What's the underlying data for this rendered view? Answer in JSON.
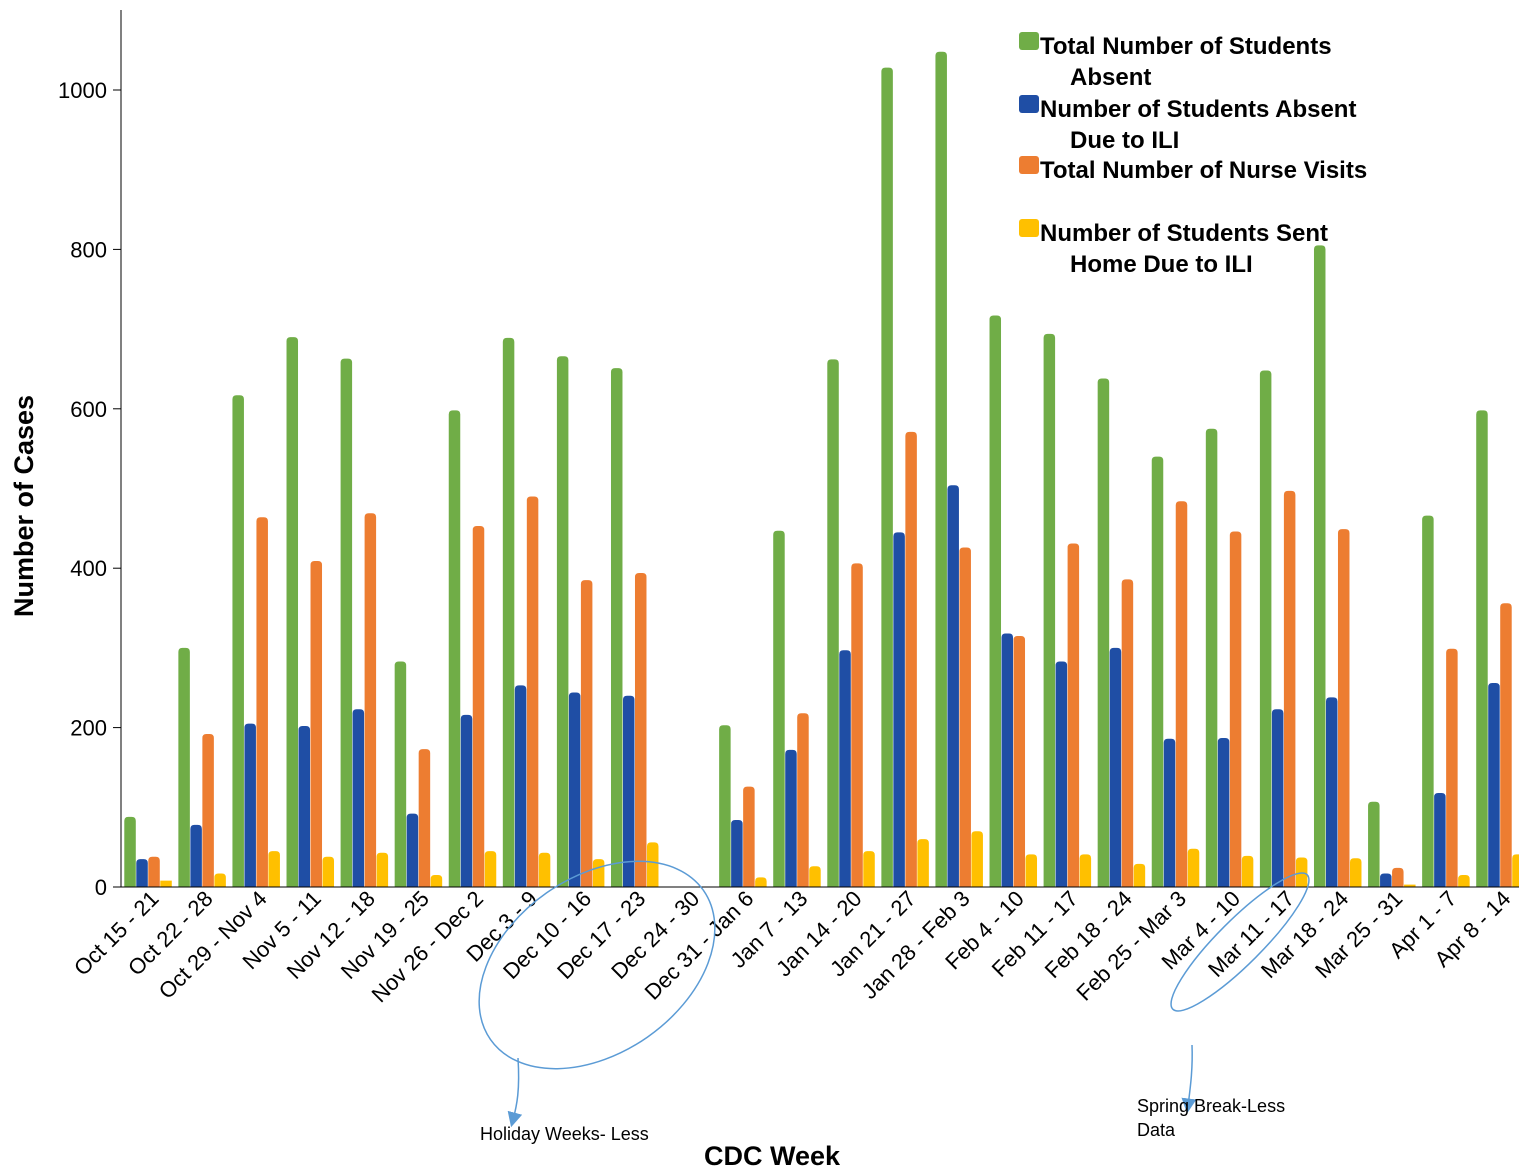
{
  "chart_data": {
    "type": "bar",
    "xlabel": "CDC Week",
    "ylabel": "Number of Cases",
    "ylim": [
      0,
      1100
    ],
    "yticks": [
      0,
      200,
      400,
      600,
      800,
      1000
    ],
    "grid": false,
    "legend_position": "top-right",
    "categories": [
      "Oct 15 - 21",
      "Oct 22 - 28",
      "Oct 29 - Nov 4",
      "Nov 5 - 11",
      "Nov 12 - 18",
      "Nov 19 - 25",
      "Nov 26 - Dec 2",
      "Dec 3 - 9",
      "Dec 10 - 16",
      "Dec 17 - 23",
      "Dec 24 - 30",
      "Dec 31 - Jan 6",
      "Jan 7 - 13",
      "Jan 14 - 20",
      "Jan 21 - 27",
      "Jan 28 - Feb 3",
      "Feb 4 - 10",
      "Feb 11 - 17",
      "Feb 18 - 24",
      "Feb 25 - Mar 3",
      "Mar 4 - 10",
      "Mar 11 - 17",
      "Mar 18 - 24",
      "Mar 25 - 31",
      "Apr 1 - 7",
      "Apr 8 - 14"
    ],
    "series": [
      {
        "name": "Total Number of Students Absent",
        "color": "#70ad47",
        "values": [
          88,
          300,
          617,
          690,
          663,
          283,
          598,
          689,
          666,
          651,
          0,
          203,
          447,
          662,
          1028,
          1048,
          717,
          694,
          638,
          540,
          575,
          648,
          805,
          107,
          466,
          598
        ]
      },
      {
        "name": "Number of Students Absent Due to ILI",
        "color": "#1f4ea5",
        "values": [
          35,
          78,
          205,
          202,
          223,
          92,
          216,
          253,
          244,
          240,
          0,
          84,
          172,
          297,
          445,
          504,
          318,
          283,
          300,
          186,
          187,
          223,
          238,
          17,
          118,
          256
        ]
      },
      {
        "name": "Total Number of Nurse Visits",
        "color": "#ed7d31",
        "values": [
          38,
          192,
          464,
          409,
          469,
          173,
          453,
          490,
          385,
          394,
          0,
          126,
          218,
          406,
          571,
          426,
          315,
          431,
          386,
          484,
          446,
          497,
          449,
          24,
          299,
          356
        ]
      },
      {
        "name": "Number of Students Sent Home Due to ILI",
        "color": "#ffc000",
        "values": [
          8,
          17,
          45,
          38,
          43,
          15,
          45,
          43,
          35,
          56,
          0,
          12,
          26,
          45,
          60,
          70,
          41,
          41,
          29,
          48,
          39,
          37,
          36,
          3,
          15,
          41
        ]
      }
    ],
    "legend": [
      {
        "lines": [
          "Total Number of Students",
          "Absent"
        ]
      },
      {
        "lines": [
          "Number of Students Absent",
          "Due to ILI"
        ]
      },
      {
        "lines": [
          "Total Number of Nurse Visits"
        ]
      },
      {
        "lines": [
          "Number of Students Sent",
          "Home Due to ILI"
        ]
      }
    ],
    "annotations": [
      {
        "lines": [
          "Holiday Weeks- Less"
        ]
      },
      {
        "lines": [
          "Spring Break-Less",
          "Data"
        ]
      }
    ]
  }
}
